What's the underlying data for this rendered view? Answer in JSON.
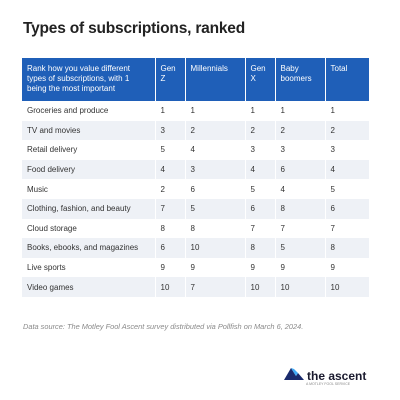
{
  "title": "Types of subscriptions, ranked",
  "table": {
    "headers": [
      "Rank how you value different types of subscriptions, with 1 being the most important",
      "Gen Z",
      "Millennials",
      "Gen X",
      "Baby boomers",
      "Total"
    ],
    "rows": [
      [
        "Groceries and produce",
        "1",
        "1",
        "1",
        "1",
        "1"
      ],
      [
        "TV and movies",
        "3",
        "2",
        "2",
        "2",
        "2"
      ],
      [
        "Retail delivery",
        "5",
        "4",
        "3",
        "3",
        "3"
      ],
      [
        "Food delivery",
        "4",
        "3",
        "4",
        "6",
        "4"
      ],
      [
        "Music",
        "2",
        "6",
        "5",
        "4",
        "5"
      ],
      [
        "Clothing, fashion, and beauty",
        "7",
        "5",
        "6",
        "8",
        "6"
      ],
      [
        "Cloud storage",
        "8",
        "8",
        "7",
        "7",
        "7"
      ],
      [
        "Books, ebooks, and magazines",
        "6",
        "10",
        "8",
        "5",
        "8"
      ],
      [
        "Live sports",
        "9",
        "9",
        "9",
        "9",
        "9"
      ],
      [
        "Video games",
        "10",
        "7",
        "10",
        "10",
        "10"
      ]
    ]
  },
  "source": "Data source: The Motley Fool Ascent survey distributed via Pollfish on March 6, 2024.",
  "brand": {
    "name": "the ascent",
    "tagline": "A MOTLEY FOOL SERVICE",
    "icon": "mountain-logo-icon",
    "colors": {
      "dark": "#1a2a6c",
      "light": "#3fa9f5"
    }
  },
  "colors": {
    "header_bg": "#1f5fb8",
    "stripe": "#eef1f6"
  }
}
